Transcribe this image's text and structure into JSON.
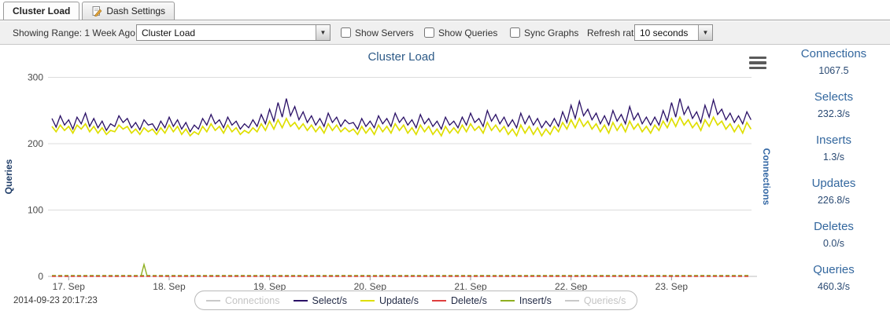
{
  "tabs": [
    {
      "label": "Cluster Load",
      "active": true
    },
    {
      "label": "Dash Settings",
      "active": false
    }
  ],
  "toolbar": {
    "range_label": "Showing Range: 1 Week Ago",
    "graph_select_value": "Cluster Load",
    "checkboxes": [
      {
        "label": "Show Servers",
        "checked": false
      },
      {
        "label": "Show Queries",
        "checked": false
      },
      {
        "label": "Sync Graphs",
        "checked": false
      }
    ],
    "refresh_label": "Refresh rate:",
    "refresh_value": "10 seconds"
  },
  "chart_data": {
    "type": "line",
    "title": "Cluster Load",
    "ylabel_left": "Queries",
    "ylabel_right": "Connections",
    "yticks": [
      0,
      100,
      200,
      300
    ],
    "ylim": [
      0,
      320
    ],
    "x_range": "1 week, hourly samples ending 2014-09-23 20:17",
    "xtick_labels": [
      "17. Sep",
      "18. Sep",
      "19. Sep",
      "20. Sep",
      "21. Sep",
      "22. Sep",
      "23. Sep"
    ],
    "xtick_hours": [
      4,
      28,
      52,
      76,
      100,
      124,
      148
    ],
    "grid": true,
    "legend_position": "bottom",
    "legend": [
      {
        "label": "Connections",
        "color": "#c9c9c9",
        "disabled": true
      },
      {
        "label": "Select/s",
        "color": "#2a1066",
        "disabled": false
      },
      {
        "label": "Update/s",
        "color": "#dfdf00",
        "disabled": false
      },
      {
        "label": "Delete/s",
        "color": "#df3e3e",
        "disabled": false
      },
      {
        "label": "Insert/s",
        "color": "#8faf20",
        "disabled": false
      },
      {
        "label": "Queries/s",
        "color": "#c9c9c9",
        "disabled": true
      }
    ],
    "series": [
      {
        "name": "Select/s",
        "color": "#2a1066",
        "width": 1.3,
        "values": [
          238,
          225,
          242,
          228,
          236,
          222,
          240,
          230,
          246,
          226,
          238,
          224,
          234,
          220,
          230,
          226,
          242,
          232,
          238,
          224,
          232,
          221,
          236,
          228,
          230,
          220,
          234,
          224,
          240,
          226,
          236,
          222,
          232,
          218,
          228,
          222,
          238,
          228,
          244,
          230,
          236,
          224,
          240,
          228,
          234,
          222,
          230,
          224,
          236,
          226,
          244,
          230,
          252,
          234,
          262,
          240,
          268,
          242,
          256,
          236,
          248,
          232,
          242,
          228,
          238,
          226,
          246,
          232,
          240,
          226,
          236,
          230,
          232,
          222,
          238,
          226,
          234,
          224,
          242,
          230,
          238,
          226,
          246,
          232,
          240,
          228,
          236,
          224,
          244,
          230,
          238,
          226,
          234,
          222,
          240,
          228,
          234,
          224,
          240,
          228,
          246,
          232,
          238,
          226,
          250,
          234,
          244,
          230,
          240,
          226,
          236,
          224,
          246,
          230,
          242,
          228,
          238,
          224,
          234,
          226,
          238,
          226,
          248,
          232,
          258,
          238,
          264,
          242,
          252,
          236,
          246,
          230,
          242,
          228,
          250,
          234,
          244,
          230,
          256,
          236,
          246,
          230,
          240,
          228,
          240,
          228,
          250,
          234,
          262,
          240,
          268,
          244,
          256,
          238,
          248,
          232,
          258,
          240,
          266,
          244,
          252,
          236,
          246,
          232,
          242,
          230,
          248,
          236
        ]
      },
      {
        "name": "Update/s",
        "color": "#dfdf00",
        "width": 1.7,
        "values": [
          226,
          218,
          228,
          220,
          226,
          216,
          228,
          222,
          230,
          218,
          226,
          216,
          224,
          214,
          220,
          218,
          228,
          222,
          226,
          216,
          222,
          214,
          224,
          218,
          222,
          214,
          224,
          216,
          228,
          218,
          226,
          214,
          222,
          212,
          218,
          214,
          226,
          218,
          230,
          220,
          226,
          216,
          228,
          218,
          224,
          214,
          220,
          216,
          224,
          218,
          230,
          220,
          234,
          222,
          236,
          224,
          238,
          226,
          232,
          222,
          230,
          220,
          228,
          218,
          226,
          216,
          230,
          220,
          228,
          218,
          224,
          218,
          222,
          214,
          226,
          216,
          224,
          214,
          228,
          218,
          226,
          216,
          230,
          220,
          228,
          216,
          224,
          214,
          228,
          218,
          226,
          214,
          222,
          212,
          226,
          216,
          224,
          216,
          228,
          218,
          230,
          220,
          226,
          216,
          232,
          220,
          228,
          218,
          226,
          214,
          222,
          212,
          228,
          216,
          226,
          214,
          224,
          212,
          222,
          214,
          226,
          218,
          232,
          222,
          236,
          224,
          238,
          226,
          234,
          222,
          230,
          218,
          228,
          216,
          232,
          220,
          230,
          218,
          234,
          222,
          230,
          218,
          226,
          216,
          228,
          220,
          234,
          224,
          238,
          226,
          240,
          228,
          236,
          224,
          232,
          220,
          236,
          226,
          240,
          228,
          234,
          222,
          230,
          218,
          228,
          216,
          232,
          222
        ]
      },
      {
        "name": "Insert/s",
        "color": "#8faf20",
        "dashed": true,
        "constant": 1.3,
        "spike": {
          "hour": 22,
          "value": 18
        }
      },
      {
        "name": "Delete/s",
        "color": "#df3e3e",
        "dashed": true,
        "constant": 0
      }
    ]
  },
  "sidebar": {
    "stats": [
      {
        "label": "Connections",
        "value": "1067.5"
      },
      {
        "label": "Selects",
        "value": "232.3/s"
      },
      {
        "label": "Inserts",
        "value": "1.3/s"
      },
      {
        "label": "Updates",
        "value": "226.8/s"
      },
      {
        "label": "Deletes",
        "value": "0.0/s"
      },
      {
        "label": "Queries",
        "value": "460.3/s"
      }
    ]
  },
  "footer": {
    "timestamp": "2014-09-23 20:17:23"
  }
}
